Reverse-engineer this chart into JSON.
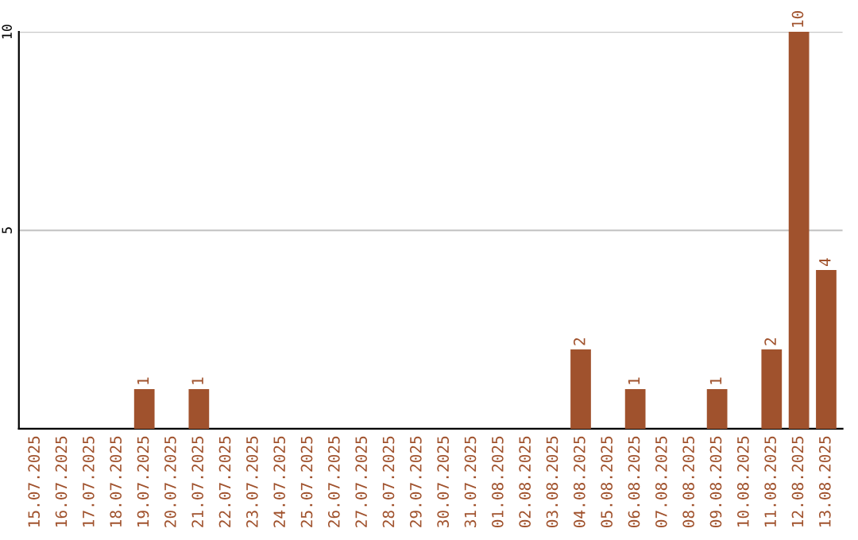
{
  "chart_data": {
    "type": "bar",
    "categories": [
      "15.07.2025",
      "16.07.2025",
      "17.07.2025",
      "18.07.2025",
      "19.07.2025",
      "20.07.2025",
      "21.07.2025",
      "22.07.2025",
      "23.07.2025",
      "24.07.2025",
      "25.07.2025",
      "26.07.2025",
      "27.07.2025",
      "28.07.2025",
      "29.07.2025",
      "30.07.2025",
      "31.07.2025",
      "01.08.2025",
      "02.08.2025",
      "03.08.2025",
      "04.08.2025",
      "05.08.2025",
      "06.08.2025",
      "07.08.2025",
      "08.08.2025",
      "09.08.2025",
      "10.08.2025",
      "11.08.2025",
      "12.08.2025",
      "13.08.2025"
    ],
    "values": [
      0,
      0,
      0,
      0,
      1,
      0,
      1,
      0,
      0,
      0,
      0,
      0,
      0,
      0,
      0,
      0,
      0,
      0,
      0,
      0,
      2,
      0,
      1,
      0,
      0,
      1,
      0,
      2,
      10,
      4
    ],
    "value_labels": [
      null,
      null,
      null,
      null,
      "1",
      null,
      "1",
      null,
      null,
      null,
      null,
      null,
      null,
      null,
      null,
      null,
      null,
      null,
      null,
      null,
      "2",
      null,
      "1",
      null,
      null,
      "1",
      null,
      "2",
      "10",
      "4"
    ],
    "color": "#a0522d",
    "ylim": [
      0,
      10
    ],
    "yticks": [
      5,
      10
    ],
    "grid": "y"
  }
}
